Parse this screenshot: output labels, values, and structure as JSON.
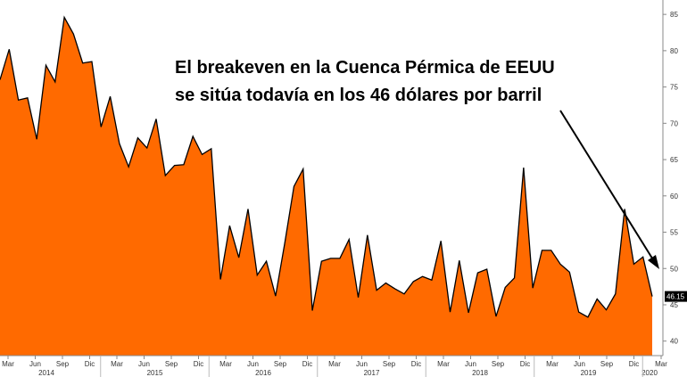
{
  "chart_data": {
    "type": "area",
    "title": "",
    "annotation_lines": [
      "El breakeven en la Cuenca Pérmica de EEUU",
      "se sitúa todavía en los 46 dólares por barril"
    ],
    "ylim": [
      38,
      86
    ],
    "yticks": [
      40,
      45,
      50,
      55,
      60,
      65,
      70,
      75,
      80,
      85
    ],
    "grid": false,
    "axis_side": "right",
    "fill_color": "#ff6a00",
    "line_color": "#000000",
    "last_value_label": "46.15",
    "x_tick_labels": [
      "Mar",
      "Jun",
      "Sep",
      "Dic",
      "Mar",
      "Jun",
      "Sep",
      "Dic",
      "Mar",
      "Jun",
      "Sep",
      "Dic",
      "Mar",
      "Jun",
      "Sep",
      "Dic",
      "Mar",
      "Jun",
      "Sep",
      "Dic",
      "Mar",
      "Jun",
      "Sep",
      "Dic",
      "Mar"
    ],
    "year_labels": [
      "2014",
      "2015",
      "2016",
      "2017",
      "2018",
      "2019",
      "2020"
    ],
    "values": [
      76.0,
      80.2,
      73.2,
      73.5,
      67.8,
      78.0,
      75.7,
      84.6,
      82.3,
      78.3,
      78.5,
      69.5,
      73.7,
      67.2,
      64.0,
      68.0,
      66.6,
      70.6,
      62.8,
      64.2,
      64.3,
      68.2,
      65.7,
      66.5,
      48.5,
      55.9,
      51.5,
      58.2,
      49.1,
      51.0,
      46.2,
      53.5,
      61.3,
      63.7,
      44.2,
      51.0,
      51.4,
      51.4,
      54.0,
      46.0,
      54.6,
      47.0,
      48.0,
      47.2,
      46.5,
      48.2,
      48.9,
      48.4,
      53.8,
      44.0,
      51.1,
      43.9,
      49.4,
      49.9,
      43.4,
      47.4,
      48.7,
      63.9,
      47.3,
      52.5,
      52.5,
      50.6,
      49.5,
      44.0,
      43.3,
      45.8,
      44.3,
      46.5,
      58.2,
      50.6,
      51.6,
      46.15
    ],
    "arrow": "from annotation toward 2020 values (pointing down-right)"
  }
}
